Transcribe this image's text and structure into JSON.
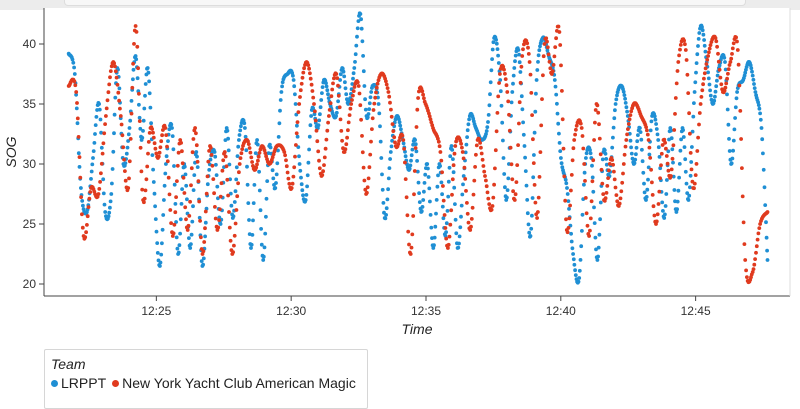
{
  "chart_data": {
    "type": "scatter",
    "xlabel": "Time",
    "ylabel": "SOG",
    "x_start": "12:21:45",
    "x_end": "12:47:40",
    "xlim": [
      "12:20:50",
      "12:48:30"
    ],
    "ylim": [
      19,
      43
    ],
    "xticks": [
      "12:25",
      "12:30",
      "12:35",
      "12:40",
      "12:45"
    ],
    "yticks": [
      20,
      25,
      30,
      35,
      40
    ],
    "legend": {
      "title": "Team",
      "placement": "bottom-left"
    },
    "series": [
      {
        "name": "LRPPT",
        "color": "#1f8fd4",
        "values": [
          39.2,
          37.5,
          28.0,
          26.0,
          30.5,
          35.0,
          26.0,
          27.5,
          38.0,
          30.0,
          33.0,
          39.0,
          32.0,
          38.0,
          28.5,
          21.5,
          30.0,
          33.0,
          22.5,
          30.0,
          23.0,
          31.0,
          21.5,
          29.0,
          31.0,
          25.0,
          33.0,
          25.5,
          32.0,
          33.0,
          23.0,
          32.0,
          22.0,
          31.5,
          28.0,
          36.0,
          37.5,
          37.0,
          30.0,
          27.0,
          34.5,
          33.0,
          37.0,
          35.0,
          34.0,
          38.0,
          35.0,
          38.0,
          42.5,
          34.0,
          36.5,
          35.0,
          25.5,
          31.0,
          34.0,
          32.0,
          29.5,
          32.0,
          26.0,
          30.0,
          23.0,
          30.0,
          24.0,
          31.5,
          23.0,
          29.0,
          34.0,
          33.0,
          32.0,
          33.5,
          40.5,
          37.0,
          27.0,
          36.0,
          39.5,
          31.5,
          24.0,
          37.0,
          40.5,
          39.0,
          37.0,
          30.5,
          28.0,
          22.5,
          20.5,
          30.0,
          30.5,
          22.0,
          31.0,
          29.0,
          35.0,
          36.5,
          34.0,
          30.0,
          33.0,
          27.0,
          34.0,
          32.0,
          25.5,
          33.0,
          26.0,
          33.0,
          27.0,
          36.0,
          41.5,
          38.5,
          35.0,
          38.0,
          38.5,
          30.0,
          36.0,
          37.0,
          38.5,
          36.0,
          33.0,
          22.0
        ]
      },
      {
        "name": "New York Yacht Club American Magic",
        "color": "#e03a1e",
        "values": [
          36.5,
          36.0,
          24.0,
          28.0,
          27.5,
          34.0,
          38.5,
          34.0,
          28.0,
          41.5,
          27.0,
          33.0,
          30.5,
          33.0,
          24.0,
          32.0,
          24.5,
          33.0,
          22.5,
          31.5,
          24.5,
          31.0,
          22.5,
          30.0,
          32.0,
          29.5,
          31.5,
          30.0,
          31.5,
          31.0,
          28.0,
          35.0,
          38.5,
          35.0,
          29.0,
          34.0,
          37.5,
          31.0,
          35.0,
          36.5,
          27.5,
          34.5,
          37.5,
          36.0,
          31.5,
          32.0,
          22.5,
          35.5,
          35.0,
          33.0,
          31.0,
          23.0,
          31.5,
          31.0,
          24.5,
          32.0,
          29.0,
          26.5,
          37.5,
          36.0,
          27.0,
          39.0,
          38.5,
          25.5,
          40.0,
          37.5,
          41.0,
          24.5,
          32.0,
          33.0,
          24.0,
          35.0,
          27.0,
          30.5,
          26.5,
          32.0,
          35.0,
          34.0,
          32.0,
          25.0,
          32.0,
          29.0,
          38.5,
          39.5,
          28.0,
          35.0,
          39.0,
          40.5,
          36.0,
          38.5,
          39.5,
          22.0,
          21.0,
          25.0,
          26.0
        ]
      }
    ]
  }
}
